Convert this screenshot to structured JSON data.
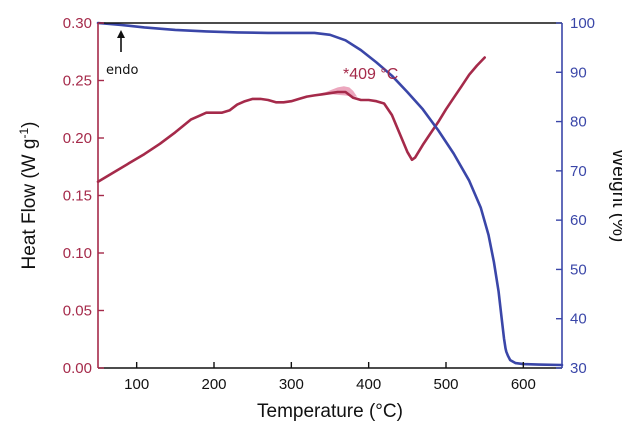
{
  "chart_data": {
    "type": "line",
    "xlabel": "Temperature (°C)",
    "ylabel_left_base": "Heat Flow (W g",
    "ylabel_left_sup": "-1",
    "ylabel_left_tail": ")",
    "ylabel_right": "Weight (%)",
    "xlim": [
      50,
      650
    ],
    "ylim_left": [
      0.0,
      0.3
    ],
    "ylim_right": [
      30,
      100
    ],
    "x_ticks": [
      100,
      200,
      300,
      400,
      500,
      600
    ],
    "x_tick_labels": [
      "100",
      "200",
      "300",
      "400",
      "500",
      "600"
    ],
    "y_left_ticks": [
      0.0,
      0.05,
      0.1,
      0.15,
      0.2,
      0.25,
      0.3
    ],
    "y_left_tick_labels": [
      "0.00",
      "0.05",
      "0.10",
      "0.15",
      "0.20",
      "0.25",
      "0.30"
    ],
    "y_right_ticks": [
      30,
      40,
      50,
      60,
      70,
      80,
      90,
      100
    ],
    "y_right_tick_labels": [
      "30",
      "40",
      "50",
      "60",
      "70",
      "80",
      "90",
      "100"
    ],
    "colors": {
      "heat_flow": "#a52a4a",
      "weight": "#3a46a8",
      "peak_fill": "#e58aa8",
      "left_axis": "#a52a4a",
      "right_axis": "#3a46a8"
    },
    "annotations": {
      "peak_label": "*409 °C",
      "endo_label": "endo"
    },
    "series": [
      {
        "axis": "left",
        "x": [
          50,
          70,
          90,
          110,
          130,
          150,
          170,
          180,
          190,
          200,
          210,
          220,
          230,
          240,
          250,
          260,
          270,
          280,
          290,
          300,
          310,
          320,
          330,
          340,
          350,
          360,
          370,
          380,
          390,
          400,
          410,
          420,
          430,
          440,
          450,
          456,
          460,
          470,
          480,
          490,
          500,
          510,
          520,
          530,
          540,
          550
        ],
        "y": [
          0.162,
          0.17,
          0.178,
          0.186,
          0.195,
          0.205,
          0.216,
          0.219,
          0.222,
          0.222,
          0.222,
          0.224,
          0.229,
          0.232,
          0.234,
          0.234,
          0.233,
          0.231,
          0.231,
          0.232,
          0.234,
          0.236,
          0.237,
          0.238,
          0.239,
          0.24,
          0.24,
          0.235,
          0.233,
          0.233,
          0.232,
          0.23,
          0.22,
          0.204,
          0.188,
          0.181,
          0.183,
          0.194,
          0.204,
          0.214,
          0.225,
          0.235,
          0.245,
          0.255,
          0.263,
          0.27
        ]
      },
      {
        "axis": "right",
        "x": [
          50,
          80,
          110,
          150,
          190,
          230,
          270,
          300,
          330,
          350,
          370,
          390,
          410,
          430,
          450,
          470,
          490,
          510,
          530,
          545,
          555,
          562,
          568,
          572,
          575,
          577,
          578,
          579,
          580,
          583,
          590,
          600,
          620,
          650
        ],
        "y": [
          100,
          99.6,
          99.1,
          98.6,
          98.3,
          98.1,
          98.0,
          98.0,
          98.0,
          97.6,
          96.5,
          94.5,
          92.0,
          89.3,
          86.0,
          82.5,
          78.2,
          73.5,
          68.0,
          62.5,
          57.0,
          51.5,
          45.5,
          40.0,
          36.0,
          34.0,
          33.3,
          32.9,
          32.5,
          31.6,
          31.0,
          30.8,
          30.7,
          30.6
        ]
      }
    ],
    "peak_fill_region": {
      "x": [
        338,
        345,
        352,
        360,
        368,
        375,
        380,
        385
      ],
      "y_top": [
        0.239,
        0.24,
        0.242,
        0.244,
        0.245,
        0.244,
        0.241,
        0.236
      ],
      "y_base": [
        0.239,
        0.2385,
        0.238,
        0.2375,
        0.237,
        0.2365,
        0.236,
        0.236
      ]
    }
  }
}
